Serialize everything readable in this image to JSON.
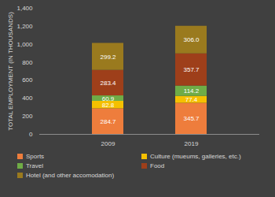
{
  "chart_data": {
    "type": "bar",
    "stacked": true,
    "data_labels": true,
    "legend": "bottom",
    "grid": false,
    "categories": [
      "2009",
      "2019"
    ],
    "ylabel": "TOTAL EMPLOYMENT (IN THOUSANDS)",
    "ylim": [
      0,
      1400
    ],
    "yticks": [
      0,
      200,
      400,
      600,
      800,
      1000,
      1200,
      1400
    ],
    "series": [
      {
        "name": "Sports",
        "color": "#ee7d3c",
        "values": [
          284.7,
          345.7
        ]
      },
      {
        "name": "Culture (mueums, galleries, etc.)",
        "color": "#f5c000",
        "values": [
          82.8,
          77.4
        ]
      },
      {
        "name": "Travel",
        "color": "#6fac46",
        "values": [
          60.9,
          114.2
        ]
      },
      {
        "name": "Food",
        "color": "#9e3f1a",
        "values": [
          283.4,
          357.7
        ]
      },
      {
        "name": "Hotel (and other accomodation)",
        "color": "#9a7a1e",
        "values": [
          299.2,
          306.0
        ],
        "value_labels": [
          "299.2",
          "306.0"
        ]
      }
    ]
  }
}
